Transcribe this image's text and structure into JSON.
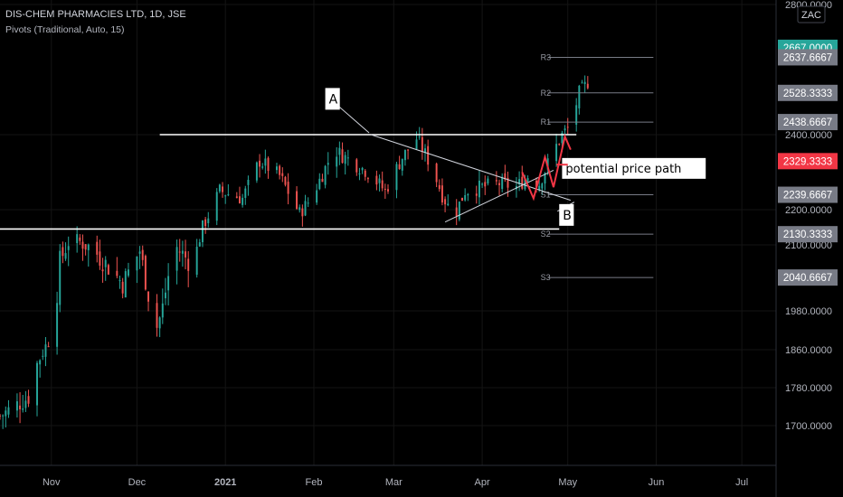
{
  "header": {
    "title": "DIS-CHEM PHARMACIES LTD, 1D, JSE",
    "indicator": "Pivots (Traditional, Auto, 15)"
  },
  "colors": {
    "background": "#000000",
    "up": "#26a69a",
    "down": "#ef5350",
    "pivot_line": "#787b86",
    "annotation": "#ffffff",
    "path": "#f23645"
  },
  "chart_data": {
    "type": "candlestick",
    "ylim": [
      1640,
      2800
    ],
    "y_ticks": [
      "2800.0000",
      "2400.0000",
      "2200.0000",
      "2100.0000",
      "1980.0000",
      "1860.0000",
      "1780.0000",
      "1700.0000"
    ],
    "y_tick_values": [
      2800,
      2400,
      2200,
      2100,
      1980,
      1860,
      1780,
      1700
    ],
    "x_labels": [
      {
        "label": "Nov",
        "day": 5
      },
      {
        "label": "Dec",
        "day": 35
      },
      {
        "label": "2021",
        "day": 66
      },
      {
        "label": "Feb",
        "day": 97
      },
      {
        "label": "Mar",
        "day": 125
      },
      {
        "label": "Apr",
        "day": 156
      },
      {
        "label": "May",
        "day": 186
      },
      {
        "label": "Jun",
        "day": 217
      },
      {
        "label": "Jul",
        "day": 247
      }
    ],
    "x_range": [
      -13,
      259
    ],
    "candles_start": {
      "day": -13,
      "price": 1720
    },
    "candles_end_day": 195,
    "pivot_levels": [
      {
        "name": "R3",
        "value": 2637.6667
      },
      {
        "name": "R2",
        "value": 2528.3333
      },
      {
        "name": "R1",
        "value": 2438.6667
      },
      {
        "name": "S1",
        "value": 2239.6667
      },
      {
        "name": "S2",
        "value": 2130.3333
      },
      {
        "name": "S3",
        "value": 2040.6667
      }
    ],
    "pivot_range_days": [
      179,
      216
    ],
    "price_badges": [
      {
        "label": "2667.0000",
        "value": 2667,
        "color": "#26a69a"
      },
      {
        "label": "2637.6667",
        "value": 2637.6667,
        "color": "#787b86"
      },
      {
        "label": "2528.3333",
        "value": 2528.3333,
        "color": "#787b86"
      },
      {
        "label": "2438.6667",
        "value": 2438.6667,
        "color": "#787b86"
      },
      {
        "label": "2329.3333",
        "value": 2329.3333,
        "color": "#f23645"
      },
      {
        "label": "2239.6667",
        "value": 2239.6667,
        "color": "#787b86"
      },
      {
        "label": "2130.3333",
        "value": 2130.3333,
        "color": "#787b86"
      },
      {
        "label": "2040.6667",
        "value": 2040.6667,
        "color": "#787b86"
      }
    ],
    "annotations": {
      "resistance_line": {
        "day_start": 43,
        "day_end": 189,
        "value": 2400
      },
      "support_line": {
        "day_start": -13,
        "day_end": 183,
        "value": 2145
      },
      "trend_a": {
        "day_start": 117,
        "day_end": 187,
        "value_start": 2400,
        "value_end": 2225
      },
      "trend_b": {
        "day_start": 143,
        "day_end": 181,
        "value_start": 2165,
        "value_end": 2305
      },
      "label_a": {
        "text": "A",
        "day": 101,
        "value": 2510
      },
      "label_b": {
        "text": "B",
        "day": 183,
        "value": 2185
      },
      "path_label": {
        "text": "potential price path",
        "day": 184,
        "value": 2310
      },
      "path_points": [
        {
          "day": 170,
          "value": 2300
        },
        {
          "day": 174,
          "value": 2230
        },
        {
          "day": 178,
          "value": 2340
        },
        {
          "day": 181,
          "value": 2260
        },
        {
          "day": 185,
          "value": 2395
        },
        {
          "day": 187,
          "value": 2360
        }
      ]
    },
    "corner_label": "ZAC"
  }
}
